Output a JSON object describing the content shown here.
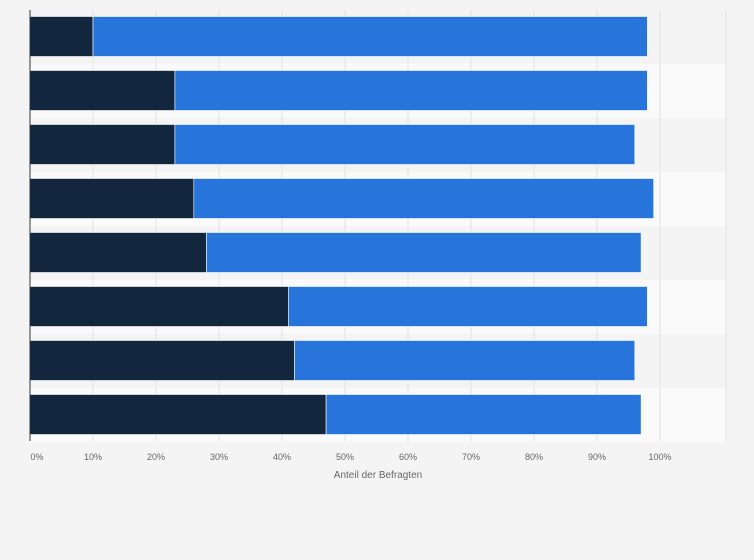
{
  "chart_data": {
    "type": "bar",
    "orientation": "horizontal",
    "stacked": true,
    "categories": [
      "",
      "",
      "",
      "",
      "",
      "",
      "",
      ""
    ],
    "series": [
      {
        "values": [
          10,
          23,
          23,
          26,
          28,
          41,
          42,
          47
        ],
        "color": "#12263e"
      },
      {
        "values": [
          88,
          75,
          73,
          73,
          69,
          57,
          54,
          50
        ],
        "color": "#2775db"
      }
    ],
    "xlabel": "Anteil der Befragten",
    "xlim": [
      0,
      110
    ],
    "xticks": [
      "0%",
      "10%",
      "20%",
      "30%",
      "40%",
      "50%",
      "60%",
      "70%",
      "80%",
      "90%",
      "100%"
    ],
    "grid": true,
    "legend": "none"
  }
}
